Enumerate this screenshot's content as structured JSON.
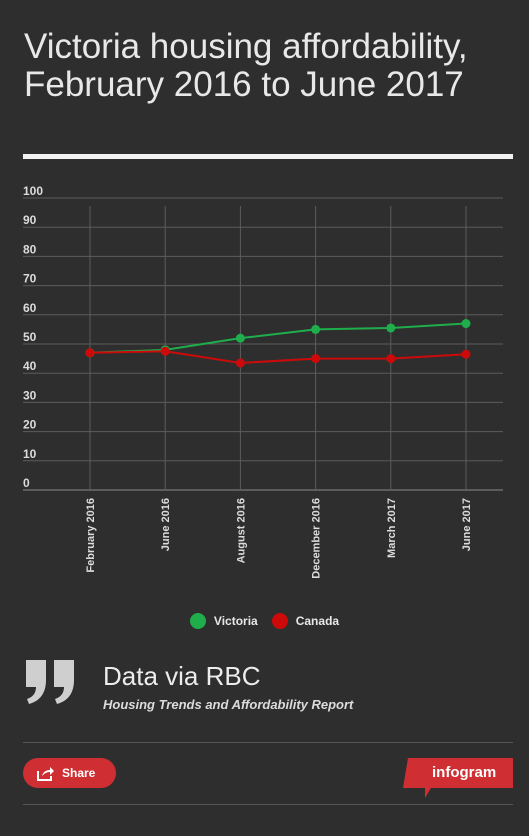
{
  "title": "Victoria housing affordability, February 2016 to June 2017",
  "chart_data": {
    "type": "line",
    "categories": [
      "February 2016",
      "June 2016",
      "August 2016",
      "December 2016",
      "March 2017",
      "June 2017"
    ],
    "series": [
      {
        "name": "Victoria",
        "color": "#1fae4b",
        "values": [
          47,
          48,
          52,
          55,
          55.5,
          57
        ]
      },
      {
        "name": "Canada",
        "color": "#cc0a0a",
        "values": [
          47,
          47.5,
          43.5,
          45,
          45,
          46.5
        ]
      }
    ],
    "ylim": [
      0,
      100
    ],
    "yticks": [
      0,
      10,
      20,
      30,
      40,
      50,
      60,
      70,
      80,
      90,
      100
    ],
    "grid": true,
    "legend_position": "bottom-center"
  },
  "source": {
    "title": "Data via RBC",
    "subtitle": "Housing Trends and Affordability Report"
  },
  "footer": {
    "share_label": "Share",
    "brand_label": "infogram"
  },
  "icons": {
    "quote": "quote-icon",
    "share": "share-icon"
  },
  "colors": {
    "background": "#2e2e2e",
    "accent": "#cf2e33"
  }
}
